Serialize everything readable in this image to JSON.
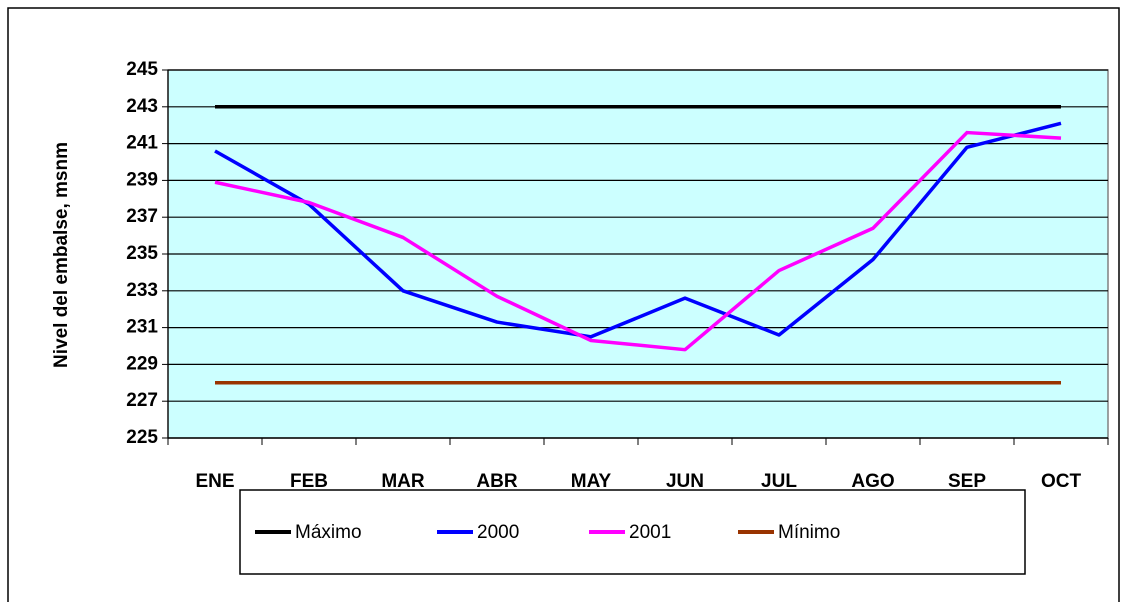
{
  "chart_data": {
    "type": "line",
    "y_label": "Nivel del embalse, msnm",
    "categories": [
      "ENE",
      "FEB",
      "MAR",
      "ABR",
      "MAY",
      "JUN",
      "JUL",
      "AGO",
      "SEP",
      "OCT"
    ],
    "series": [
      {
        "name": "Máximo",
        "color": "#000000",
        "values": [
          243,
          243,
          243,
          243,
          243,
          243,
          243,
          243,
          243,
          243
        ]
      },
      {
        "name": "2000",
        "color": "#0000ff",
        "values": [
          240.6,
          237.7,
          233.0,
          231.3,
          230.5,
          232.6,
          230.6,
          234.7,
          240.8,
          242.1
        ]
      },
      {
        "name": "2001",
        "color": "#ff00ff",
        "values": [
          238.9,
          237.8,
          235.9,
          232.7,
          230.3,
          229.8,
          234.1,
          236.4,
          241.6,
          241.3
        ]
      },
      {
        "name": "Mínimo",
        "color": "#993300",
        "values": [
          228,
          228,
          228,
          228,
          228,
          228,
          228,
          228,
          228,
          228
        ]
      }
    ],
    "ylim": [
      225,
      245
    ],
    "yticks": [
      225,
      227,
      229,
      231,
      233,
      235,
      237,
      239,
      241,
      243,
      245
    ],
    "grid": true,
    "plot_background": "#ccffff",
    "legend": "bottom"
  }
}
